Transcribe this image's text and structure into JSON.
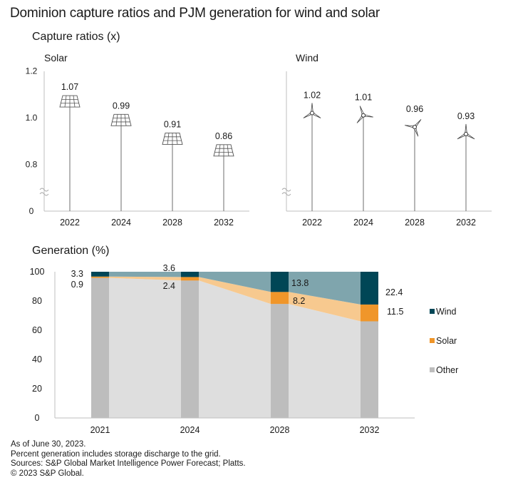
{
  "title": "Dominion capture ratios and PJM generation for wind and solar",
  "capture_section_title": "Capture ratios (x)",
  "generation_section_title": "Generation (%)",
  "notes": [
    "As of June 30, 2023.",
    "Percent generation includes storage discharge to the grid.",
    "Sources: S&P Global Market Intelligence Power Forecast; Platts.",
    "© 2023 S&P Global."
  ],
  "colors": {
    "wind": "#004656",
    "wind_area": "#7fa5ad",
    "solar": "#f0962a",
    "solar_area": "#f7c98f",
    "other": "#bdbdbd",
    "other_area": "#dedede",
    "axis": "#bfbfbf",
    "stem": "#6e6e6e"
  },
  "chart_data": [
    {
      "type": "scatter",
      "title": "Solar",
      "icon": "solar-panel-icon",
      "categories": [
        "2022",
        "2024",
        "2028",
        "2032"
      ],
      "values": [
        1.07,
        0.99,
        0.91,
        0.86
      ],
      "labels": [
        "1.07",
        "0.99",
        "0.91",
        "0.86"
      ],
      "yticks": [
        "0",
        "0.8",
        "1.0",
        "1.2"
      ],
      "ylim": [
        0.7,
        1.2
      ],
      "axis_break": true,
      "xlabel": "",
      "ylabel": ""
    },
    {
      "type": "scatter",
      "title": "Wind",
      "icon": "wind-turbine-icon",
      "categories": [
        "2022",
        "2024",
        "2028",
        "2032"
      ],
      "values": [
        1.02,
        1.01,
        0.96,
        0.93
      ],
      "labels": [
        "1.02",
        "1.01",
        "0.96",
        "0.93"
      ],
      "ylim": [
        0.7,
        1.2
      ],
      "axis_break": true,
      "xlabel": "",
      "ylabel": ""
    },
    {
      "type": "area",
      "title": "Generation (%)",
      "stacked": true,
      "categories": [
        "2021",
        "2024",
        "2028",
        "2032"
      ],
      "series": [
        {
          "name": "Other",
          "values": [
            95.8,
            94.0,
            78.0,
            66.1
          ]
        },
        {
          "name": "Solar",
          "values": [
            0.9,
            2.4,
            8.2,
            11.5
          ],
          "labels": [
            "0.9",
            "2.4",
            "8.2",
            "11.5"
          ]
        },
        {
          "name": "Wind",
          "values": [
            3.3,
            3.6,
            13.8,
            22.4
          ],
          "labels": [
            "3.3",
            "3.6",
            "13.8",
            "22.4"
          ]
        }
      ],
      "legend": [
        "Wind",
        "Solar",
        "Other"
      ],
      "legend_position": "right",
      "yticks": [
        "0",
        "20",
        "40",
        "60",
        "80",
        "100"
      ],
      "ylim": [
        0,
        100
      ],
      "xlabel": "",
      "ylabel": ""
    }
  ]
}
